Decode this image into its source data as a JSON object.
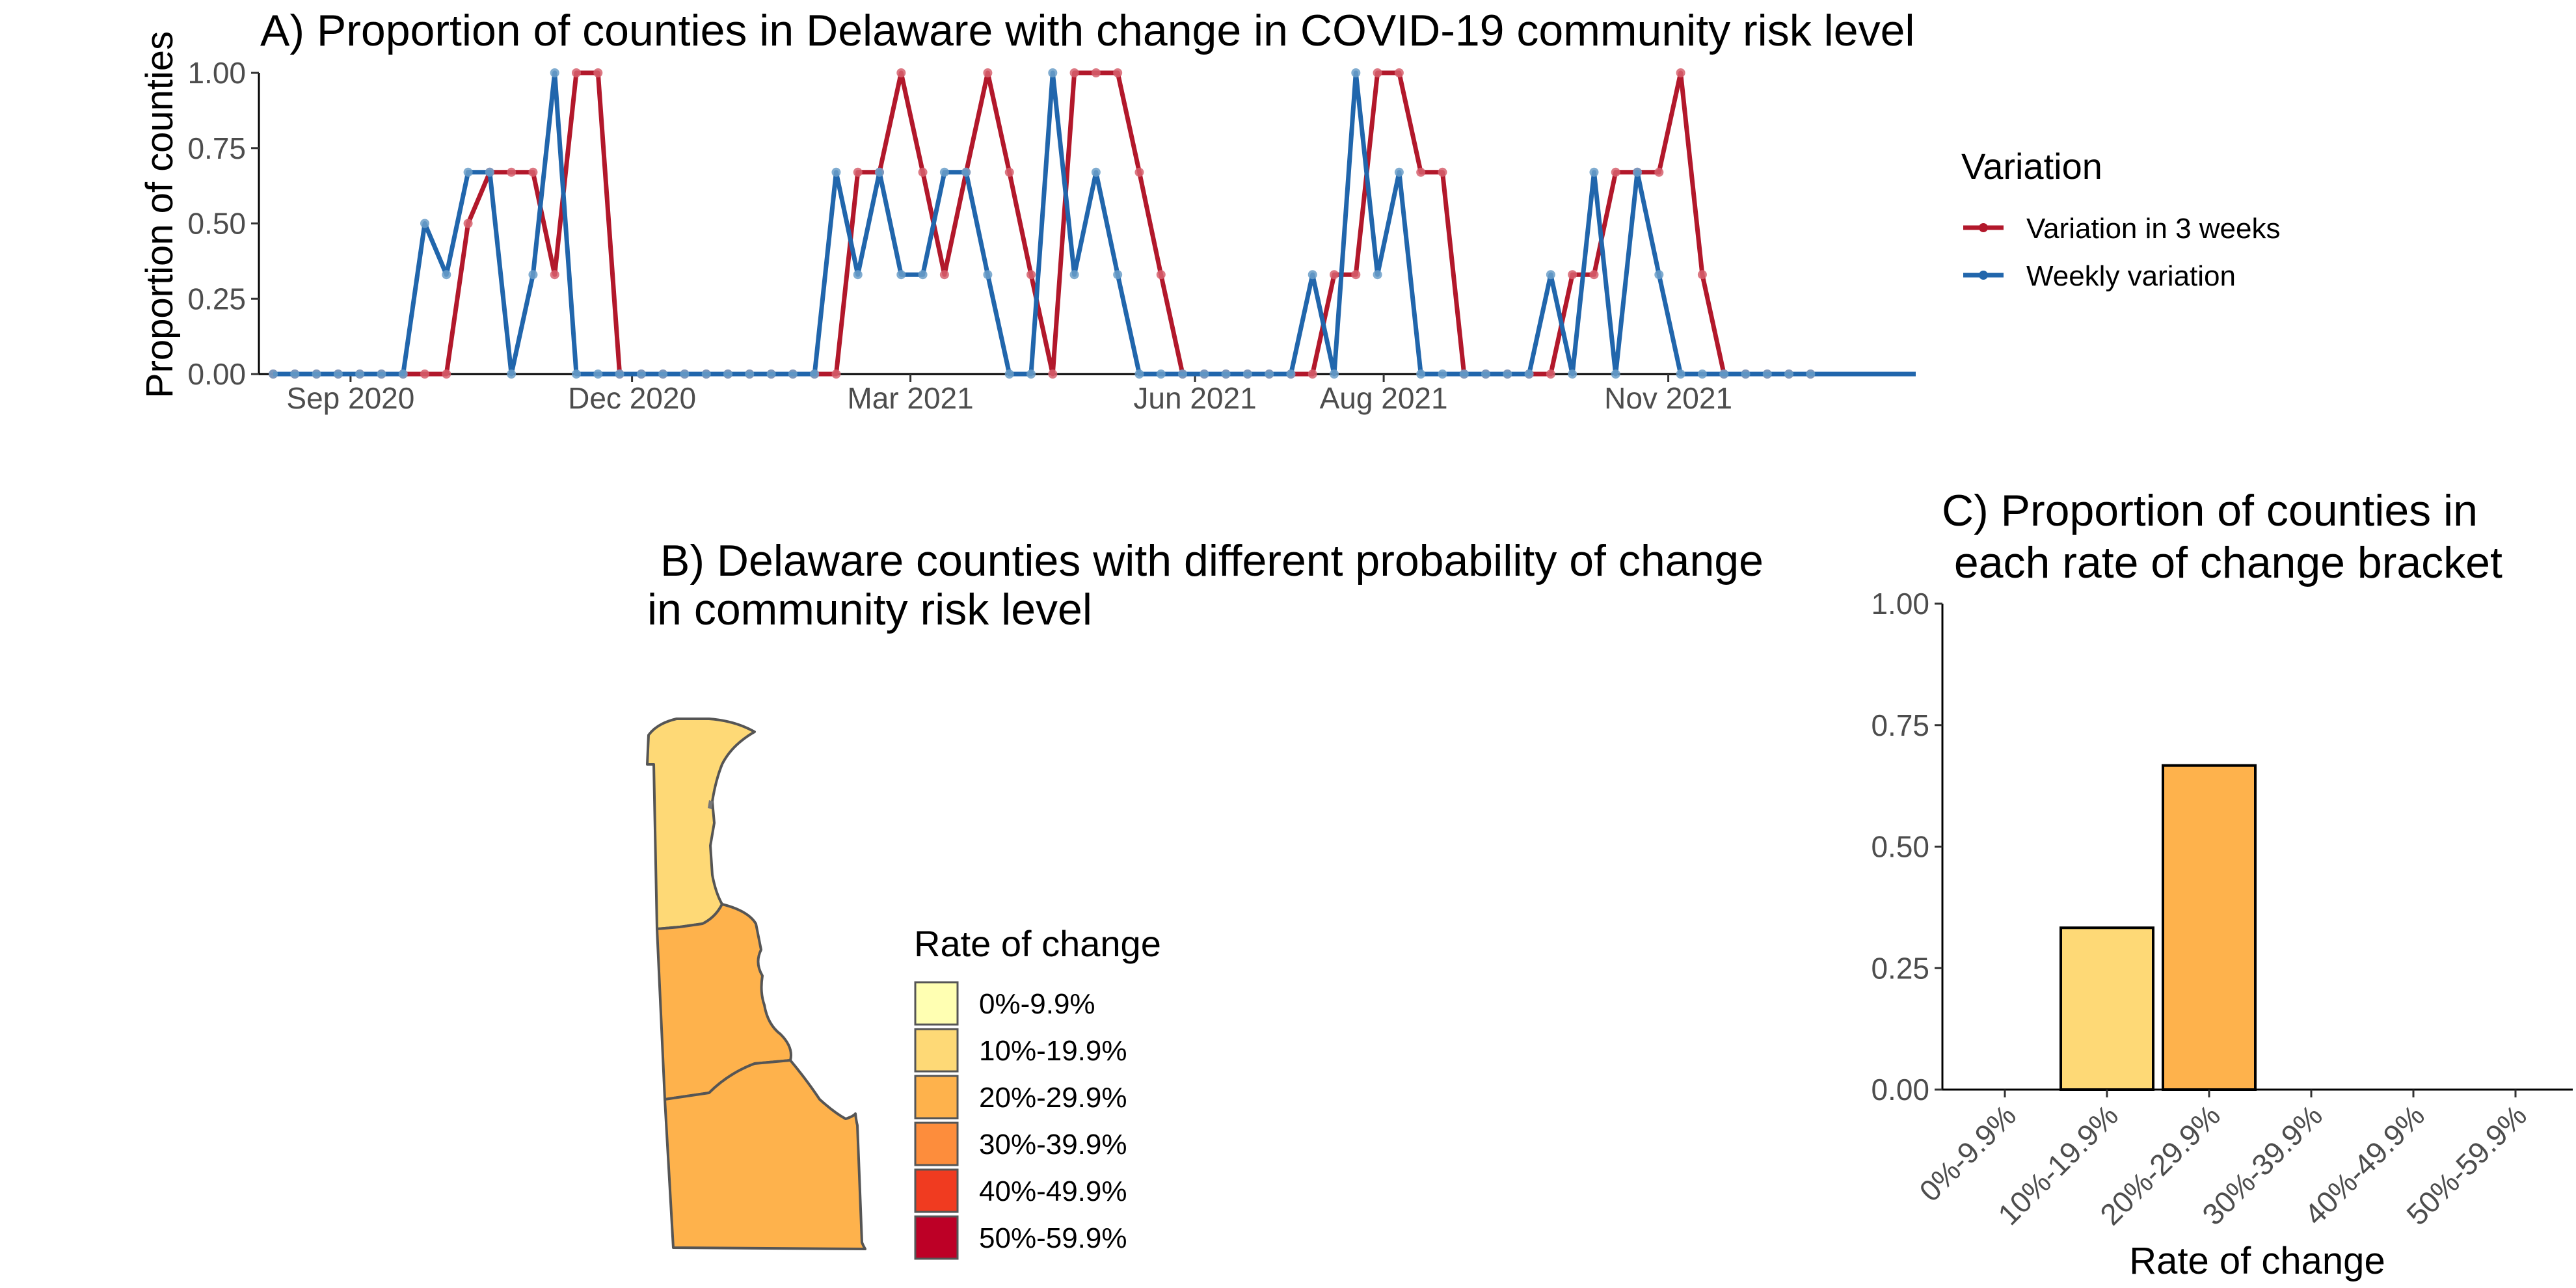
{
  "panel_a": {
    "title": "A) Proportion of counties in Delaware with change in COVID-19 community risk level",
    "ylabel": "Proportion of counties",
    "legend_title": "Variation",
    "colors": {
      "three_week": "#b2182b",
      "weekly": "#2166ac",
      "point_three_week": "#d6606d",
      "point_weekly": "#6a9ec8"
    }
  },
  "panel_b": {
    "title_line1": "B)  Delaware counties with different probability of change",
    "title_line2": "in community risk level",
    "legend_title": "Rate of change",
    "legend": [
      {
        "label": "0%-9.9%",
        "color": "#ffffb2"
      },
      {
        "label": "10%-19.9%",
        "color": "#fed976"
      },
      {
        "label": "20%-29.9%",
        "color": "#feb24c"
      },
      {
        "label": "30%-39.9%",
        "color": "#fd8d3c"
      },
      {
        "label": "40%-49.9%",
        "color": "#f03b20"
      },
      {
        "label": "50%-59.9%",
        "color": "#bd0026"
      }
    ],
    "counties": [
      {
        "name": "New Castle",
        "bracket": "10%-19.9%",
        "color": "#fed976"
      },
      {
        "name": "Kent",
        "bracket": "20%-29.9%",
        "color": "#feb24c"
      },
      {
        "name": "Sussex",
        "bracket": "20%-29.9%",
        "color": "#feb24c"
      }
    ]
  },
  "panel_c": {
    "title_line1": "C) Proportion of counties in",
    "title_line2": " each rate of change bracket",
    "xlabel": "Rate of change"
  },
  "chart_data": [
    {
      "type": "line",
      "title": "A) Proportion of counties in Delaware with change in COVID-19 community risk level",
      "xlabel": "",
      "ylabel": "Proportion of counties",
      "ylim": [
        0,
        1
      ],
      "yticks": [
        "0.00",
        "0.25",
        "0.50",
        "0.75",
        "1.00"
      ],
      "xlim": [
        "2020-08-07",
        "2022-01-20"
      ],
      "xticks": [
        {
          "date": "2020-09-01",
          "label": "Sep 2020"
        },
        {
          "date": "2020-12-01",
          "label": "Dec 2020"
        },
        {
          "date": "2021-03-01",
          "label": "Mar 2021"
        },
        {
          "date": "2021-06-01",
          "label": "Jun 2021"
        },
        {
          "date": "2021-08-01",
          "label": "Aug 2021"
        },
        {
          "date": "2021-11-01",
          "label": "Nov 2021"
        }
      ],
      "grid": false,
      "legend_position": "right",
      "series": [
        {
          "name": "Variation in 3 weeks",
          "color": "#b2182b",
          "points": [
            [
              "2020-08-07",
              0
            ],
            [
              "2020-08-14",
              0
            ],
            [
              "2020-08-21",
              0
            ],
            [
              "2020-08-28",
              0
            ],
            [
              "2020-09-04",
              0
            ],
            [
              "2020-09-11",
              0
            ],
            [
              "2020-09-18",
              0
            ],
            [
              "2020-09-25",
              0
            ],
            [
              "2020-10-02",
              0
            ],
            [
              "2020-10-09",
              0.5
            ],
            [
              "2020-10-16",
              0.67
            ],
            [
              "2020-10-23",
              0.67
            ],
            [
              "2020-10-30",
              0.67
            ],
            [
              "2020-11-06",
              0.33
            ],
            [
              "2020-11-13",
              1
            ],
            [
              "2020-11-20",
              1
            ],
            [
              "2020-11-27",
              0
            ],
            [
              "2020-12-04",
              0
            ],
            [
              "2020-12-11",
              0
            ],
            [
              "2020-12-18",
              0
            ],
            [
              "2020-12-25",
              0
            ],
            [
              "2021-01-01",
              0
            ],
            [
              "2021-01-08",
              0
            ],
            [
              "2021-01-15",
              0
            ],
            [
              "2021-01-22",
              0
            ],
            [
              "2021-01-29",
              0
            ],
            [
              "2021-02-05",
              0
            ],
            [
              "2021-02-12",
              0.67
            ],
            [
              "2021-02-19",
              0.67
            ],
            [
              "2021-02-26",
              1
            ],
            [
              "2021-03-05",
              0.67
            ],
            [
              "2021-03-12",
              0.33
            ],
            [
              "2021-03-19",
              0.67
            ],
            [
              "2021-03-26",
              1
            ],
            [
              "2021-04-02",
              0.67
            ],
            [
              "2021-04-09",
              0.33
            ],
            [
              "2021-04-16",
              0
            ],
            [
              "2021-04-23",
              1
            ],
            [
              "2021-04-30",
              1
            ],
            [
              "2021-05-07",
              1
            ],
            [
              "2021-05-14",
              0.67
            ],
            [
              "2021-05-21",
              0.33
            ],
            [
              "2021-05-28",
              0
            ],
            [
              "2021-06-04",
              0
            ],
            [
              "2021-06-11",
              0
            ],
            [
              "2021-06-18",
              0
            ],
            [
              "2021-06-25",
              0
            ],
            [
              "2021-07-02",
              0
            ],
            [
              "2021-07-09",
              0
            ],
            [
              "2021-07-16",
              0.33
            ],
            [
              "2021-07-23",
              0.33
            ],
            [
              "2021-07-30",
              1
            ],
            [
              "2021-08-06",
              1
            ],
            [
              "2021-08-13",
              0.67
            ],
            [
              "2021-08-20",
              0.67
            ],
            [
              "2021-08-27",
              0
            ],
            [
              "2021-09-03",
              0
            ],
            [
              "2021-09-10",
              0
            ],
            [
              "2021-09-17",
              0
            ],
            [
              "2021-09-24",
              0
            ],
            [
              "2021-10-01",
              0.33
            ],
            [
              "2021-10-08",
              0.33
            ],
            [
              "2021-10-15",
              0.67
            ],
            [
              "2021-10-22",
              0.67
            ],
            [
              "2021-10-29",
              0.67
            ],
            [
              "2021-11-05",
              1
            ],
            [
              "2021-11-12",
              0.33
            ],
            [
              "2021-11-19",
              0
            ],
            [
              "2021-11-26",
              0
            ],
            [
              "2021-12-03",
              0
            ],
            [
              "2021-12-10",
              0
            ],
            [
              "2021-12-17",
              0
            ]
          ]
        },
        {
          "name": "Weekly variation",
          "color": "#2166ac",
          "points": [
            [
              "2020-08-07",
              0
            ],
            [
              "2020-08-14",
              0
            ],
            [
              "2020-08-21",
              0
            ],
            [
              "2020-08-28",
              0
            ],
            [
              "2020-09-04",
              0
            ],
            [
              "2020-09-11",
              0
            ],
            [
              "2020-09-18",
              0
            ],
            [
              "2020-09-25",
              0.5
            ],
            [
              "2020-10-02",
              0.33
            ],
            [
              "2020-10-09",
              0.67
            ],
            [
              "2020-10-16",
              0.67
            ],
            [
              "2020-10-23",
              0
            ],
            [
              "2020-10-30",
              0.33
            ],
            [
              "2020-11-06",
              1
            ],
            [
              "2020-11-13",
              0
            ],
            [
              "2020-11-20",
              0
            ],
            [
              "2020-11-27",
              0
            ],
            [
              "2020-12-04",
              0
            ],
            [
              "2020-12-11",
              0
            ],
            [
              "2020-12-18",
              0
            ],
            [
              "2020-12-25",
              0
            ],
            [
              "2021-01-01",
              0
            ],
            [
              "2021-01-08",
              0
            ],
            [
              "2021-01-15",
              0
            ],
            [
              "2021-01-22",
              0
            ],
            [
              "2021-01-29",
              0
            ],
            [
              "2021-02-05",
              0.67
            ],
            [
              "2021-02-12",
              0.33
            ],
            [
              "2021-02-19",
              0.67
            ],
            [
              "2021-02-26",
              0.33
            ],
            [
              "2021-03-05",
              0.33
            ],
            [
              "2021-03-12",
              0.67
            ],
            [
              "2021-03-19",
              0.67
            ],
            [
              "2021-03-26",
              0.33
            ],
            [
              "2021-04-02",
              0
            ],
            [
              "2021-04-09",
              0
            ],
            [
              "2021-04-16",
              1
            ],
            [
              "2021-04-23",
              0.33
            ],
            [
              "2021-04-30",
              0.67
            ],
            [
              "2021-05-07",
              0.33
            ],
            [
              "2021-05-14",
              0
            ],
            [
              "2021-05-21",
              0
            ],
            [
              "2021-05-28",
              0
            ],
            [
              "2021-06-04",
              0
            ],
            [
              "2021-06-11",
              0
            ],
            [
              "2021-06-18",
              0
            ],
            [
              "2021-06-25",
              0
            ],
            [
              "2021-07-02",
              0
            ],
            [
              "2021-07-09",
              0.33
            ],
            [
              "2021-07-16",
              0
            ],
            [
              "2021-07-23",
              1
            ],
            [
              "2021-07-30",
              0.33
            ],
            [
              "2021-08-06",
              0.67
            ],
            [
              "2021-08-13",
              0
            ],
            [
              "2021-08-20",
              0
            ],
            [
              "2021-08-27",
              0
            ],
            [
              "2021-09-03",
              0
            ],
            [
              "2021-09-10",
              0
            ],
            [
              "2021-09-17",
              0
            ],
            [
              "2021-09-24",
              0.33
            ],
            [
              "2021-10-01",
              0
            ],
            [
              "2021-10-08",
              0.67
            ],
            [
              "2021-10-15",
              0
            ],
            [
              "2021-10-22",
              0.67
            ],
            [
              "2021-10-29",
              0.33
            ],
            [
              "2021-11-05",
              0
            ],
            [
              "2021-11-12",
              0
            ],
            [
              "2021-11-19",
              0
            ],
            [
              "2021-11-26",
              0
            ],
            [
              "2021-12-03",
              0
            ],
            [
              "2021-12-10",
              0
            ],
            [
              "2021-12-17",
              0
            ]
          ]
        }
      ]
    },
    {
      "type": "bar",
      "title": "C) Proportion of counties in each rate of change bracket",
      "xlabel": "Rate of change",
      "ylabel": "",
      "ylim": [
        0,
        1
      ],
      "yticks": [
        "0.00",
        "0.25",
        "0.50",
        "0.75",
        "1.00"
      ],
      "categories": [
        "0%-9.9%",
        "10%-19.9%",
        "20%-29.9%",
        "30%-39.9%",
        "40%-49.9%",
        "50%-59.9%"
      ],
      "values": [
        0,
        0.333,
        0.667,
        0,
        0,
        0
      ],
      "colors": [
        "#ffffb2",
        "#fed976",
        "#feb24c",
        "#fd8d3c",
        "#f03b20",
        "#bd0026"
      ],
      "grid": false
    }
  ]
}
